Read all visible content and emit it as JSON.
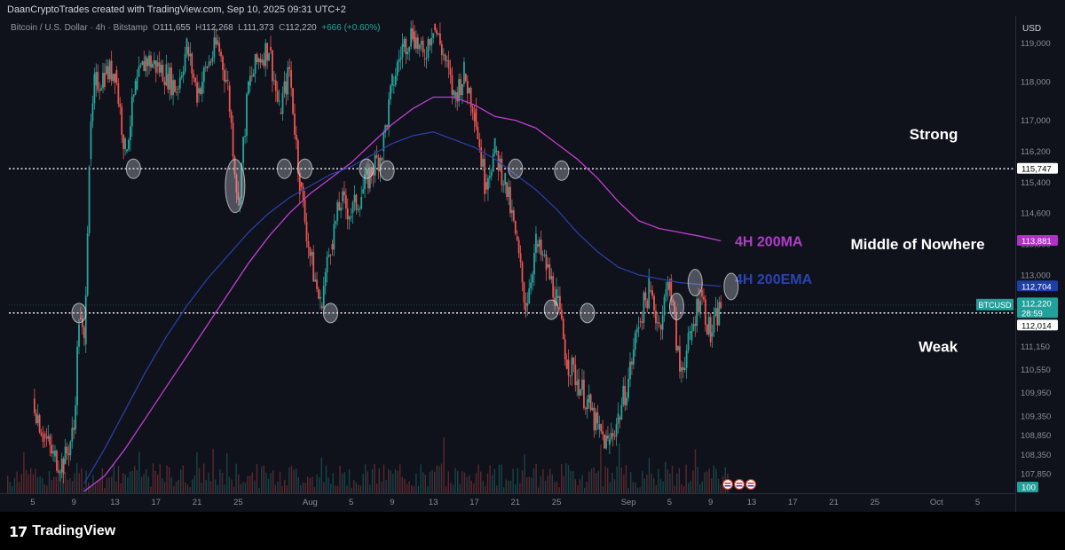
{
  "header": {
    "credit": "DaanCryptoTrades created with TradingView.com, Sep 10, 2025 09:31 UTC+2",
    "symbol": "Bitcoin / U.S. Dollar · 4h · Bitstamp",
    "open_label": "O",
    "open_value": "111,655",
    "high_label": "H",
    "high_value": "112,268",
    "low_label": "L",
    "low_value": "111,373",
    "close_label": "C",
    "close_value": "112,220",
    "change": "+666 (+0.60%)"
  },
  "footer": {
    "brand": "TradingView"
  },
  "colors": {
    "background": "#0f111b",
    "up": "#26a69a",
    "down": "#ef5350",
    "ma200": "#c040d0",
    "ema200": "#2a3fa0"
  },
  "chart_data": {
    "type": "candlestick",
    "currency_label": "USD",
    "y_ticks": [
      "119,000",
      "118,000",
      "117,000",
      "116,200",
      "115,400",
      "114,600",
      "113,800",
      "113,000",
      "112,200",
      "111,150",
      "110,550",
      "109,950",
      "109,350",
      "108,850",
      "108,350",
      "107,850"
    ],
    "y_tick_values": [
      119000,
      118000,
      117000,
      116200,
      115400,
      114600,
      113800,
      113000,
      112200,
      111150,
      110550,
      109950,
      109350,
      108850,
      108350,
      107850
    ],
    "ylim": [
      107350,
      119700
    ],
    "x_ticks": [
      "5",
      "9",
      "13",
      "17",
      "21",
      "25",
      "Aug",
      "5",
      "9",
      "13",
      "17",
      "21",
      "25",
      "Sep",
      "5",
      "9",
      "13",
      "17",
      "21",
      "25",
      "Oct",
      "5"
    ],
    "x_tick_values": [
      5,
      9,
      13,
      17,
      21,
      25,
      32,
      36,
      40,
      44,
      48,
      52,
      56,
      63,
      67,
      71,
      75,
      79,
      83,
      87,
      93,
      97
    ],
    "x_note": "x values are calendar day numbers counted from July 0 (July 5 = 5, Aug 1 = 32, Sep 1 = 63, Oct 1 = 93)",
    "levels": [
      {
        "name": "Strong",
        "value": 115747
      },
      {
        "name": "Weak",
        "value": 112014
      }
    ],
    "price_labels": [
      {
        "text": "115,747",
        "value": 115747,
        "bg": "#ffffff",
        "fg": "#000000"
      },
      {
        "text": "113,881",
        "value": 113881,
        "bg": "#b030c8",
        "fg": "#ffffff"
      },
      {
        "text": "112,704",
        "value": 112704,
        "bg": "#1f3fa8",
        "fg": "#ffffff"
      },
      {
        "text": "112,220",
        "value": 112220,
        "bg": "#22a09a",
        "fg": "#ffffff"
      },
      {
        "text": "28:59",
        "value": 112100,
        "bg": "#22a09a",
        "fg": "#ffffff"
      },
      {
        "text": "112,014",
        "value": 112014,
        "bg": "#ffffff",
        "fg": "#000000"
      }
    ],
    "btc_tag": "BTCUSD",
    "volume_tag": "100",
    "zone_labels": [
      {
        "text": "Strong",
        "value": 116650
      },
      {
        "text": "Middle of Nowhere",
        "value": 113800
      },
      {
        "text": "Weak",
        "value": 111150
      }
    ],
    "series": [
      {
        "name": "4H 200MA",
        "x": [
          10,
          12,
          14,
          16,
          18,
          20,
          22,
          24,
          26,
          28,
          30,
          32,
          34,
          36,
          38,
          40,
          42,
          44,
          46,
          48,
          50,
          52,
          54,
          56,
          58,
          60,
          62,
          64,
          66,
          68,
          70,
          72
        ],
        "values": [
          107400,
          107800,
          108500,
          109300,
          110100,
          110900,
          111700,
          112500,
          113300,
          114000,
          114600,
          115100,
          115500,
          115900,
          116400,
          116900,
          117300,
          117600,
          117600,
          117400,
          117100,
          117000,
          116800,
          116400,
          116000,
          115500,
          114900,
          114400,
          114200,
          114100,
          114000,
          113881
        ]
      },
      {
        "name": "4H 200EMA",
        "x": [
          10,
          12,
          14,
          16,
          18,
          20,
          22,
          24,
          26,
          28,
          30,
          32,
          34,
          36,
          38,
          40,
          42,
          44,
          46,
          48,
          50,
          52,
          54,
          56,
          58,
          60,
          62,
          64,
          66,
          68,
          70,
          72
        ],
        "values": [
          107600,
          108500,
          109500,
          110500,
          111400,
          112200,
          112900,
          113500,
          114100,
          114600,
          115000,
          115300,
          115600,
          115800,
          116100,
          116400,
          116600,
          116700,
          116500,
          116300,
          116000,
          115600,
          115200,
          114700,
          114100,
          113600,
          113200,
          113000,
          112900,
          112800,
          112750,
          112704
        ]
      },
      {
        "name": "BTCUSD",
        "x": [
          5,
          6,
          7,
          8,
          9,
          9.5,
          10,
          10.5,
          11,
          12,
          13,
          14,
          15,
          16,
          17,
          18,
          19,
          20,
          21,
          22,
          23,
          24,
          25,
          26,
          27,
          28,
          29,
          30,
          31,
          32,
          33,
          34,
          35,
          36,
          37,
          38,
          39,
          40,
          41,
          42,
          43,
          44,
          45,
          46,
          47,
          48,
          49,
          50,
          51,
          52,
          53,
          54,
          55,
          56,
          57,
          58,
          59,
          60,
          61,
          62,
          63,
          64,
          65,
          66,
          67,
          68,
          69,
          70,
          71,
          72
        ],
        "values": [
          109800,
          108900,
          108300,
          108100,
          109000,
          111900,
          111200,
          116000,
          117900,
          118200,
          118300,
          116200,
          117800,
          118600,
          118400,
          118200,
          117800,
          118900,
          117700,
          118400,
          119000,
          117900,
          114800,
          117900,
          118600,
          118900,
          117200,
          118300,
          115400,
          113500,
          112200,
          113800,
          114900,
          114600,
          115100,
          115700,
          116200,
          117900,
          118900,
          119300,
          118600,
          119500,
          118700,
          117600,
          118200,
          117300,
          115400,
          116200,
          115400,
          114000,
          112200,
          113800,
          113200,
          112400,
          110800,
          110300,
          109700,
          109000,
          108600,
          109300,
          110300,
          111800,
          112600,
          111700,
          112900,
          110500,
          111300,
          112600,
          111400,
          112220
        ]
      }
    ],
    "annotations": [
      {
        "x": 9.5,
        "value": 112014
      },
      {
        "x": 14.8,
        "value": 115747
      },
      {
        "x": 24.7,
        "value": 115300
      },
      {
        "x": 29.5,
        "value": 115747
      },
      {
        "x": 31.5,
        "value": 115747
      },
      {
        "x": 34,
        "value": 112014
      },
      {
        "x": 37.5,
        "value": 115747
      },
      {
        "x": 39.5,
        "value": 115700
      },
      {
        "x": 52,
        "value": 115747
      },
      {
        "x": 55.5,
        "value": 112100
      },
      {
        "x": 56.5,
        "value": 115700
      },
      {
        "x": 59,
        "value": 112014
      },
      {
        "x": 67.7,
        "value": 112180
      },
      {
        "x": 69.5,
        "value": 112800
      },
      {
        "x": 73,
        "value": 112700
      }
    ]
  }
}
